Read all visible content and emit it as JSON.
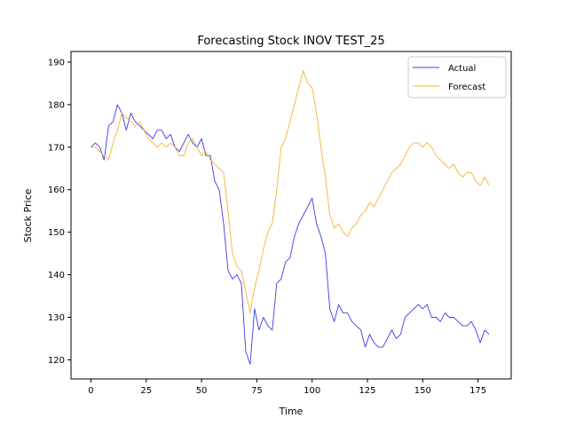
{
  "chart_data": {
    "type": "line",
    "title": "Forecasting Stock INOV TEST_25",
    "xlabel": "Time",
    "ylabel": "Stock Price",
    "xlim": [
      -9,
      190
    ],
    "ylim": [
      115.5,
      192.5
    ],
    "xticks": [
      0,
      25,
      50,
      75,
      100,
      125,
      150,
      175
    ],
    "yticks": [
      120,
      130,
      140,
      150,
      160,
      170,
      180,
      190
    ],
    "grid": false,
    "legend_position": "top-right",
    "series": [
      {
        "name": "Actual",
        "color": "#3b3be6",
        "x": [
          0,
          2,
          4,
          6,
          8,
          10,
          12,
          14,
          16,
          18,
          20,
          22,
          24,
          26,
          28,
          30,
          32,
          34,
          36,
          38,
          40,
          42,
          44,
          46,
          48,
          50,
          52,
          54,
          56,
          58,
          60,
          62,
          64,
          66,
          68,
          70,
          72,
          74,
          76,
          78,
          80,
          82,
          84,
          86,
          88,
          90,
          92,
          94,
          96,
          98,
          100,
          102,
          104,
          106,
          108,
          110,
          112,
          114,
          116,
          118,
          120,
          122,
          124,
          126,
          128,
          130,
          132,
          134,
          136,
          138,
          140,
          142,
          144,
          146,
          148,
          150,
          152,
          154,
          156,
          158,
          160,
          162,
          164,
          166,
          168,
          170,
          172,
          174,
          176,
          178,
          180
        ],
        "values": [
          170,
          171,
          170,
          167,
          175,
          176,
          180,
          178,
          174,
          178,
          176,
          175,
          174,
          173,
          172,
          174,
          174,
          172,
          173,
          170,
          169,
          171,
          173,
          171,
          170,
          172,
          168,
          168,
          162,
          160,
          152,
          141,
          139,
          140,
          138,
          122,
          119,
          132,
          127,
          130,
          128,
          127,
          138,
          139,
          143,
          144,
          149,
          152,
          154,
          156,
          158,
          152,
          149,
          145,
          132,
          129,
          133,
          131,
          131,
          129,
          128,
          127,
          123,
          126,
          124,
          123,
          123,
          125,
          127,
          125,
          126,
          130,
          131,
          132,
          133,
          132,
          133,
          130,
          130,
          129,
          131,
          130,
          130,
          129,
          128,
          128,
          129,
          127,
          124,
          127,
          126
        ]
      },
      {
        "name": "Forecast",
        "color": "#f5b333",
        "x": [
          0,
          2,
          4,
          6,
          8,
          10,
          12,
          14,
          16,
          18,
          20,
          22,
          24,
          26,
          28,
          30,
          32,
          34,
          36,
          38,
          40,
          42,
          44,
          46,
          48,
          50,
          52,
          54,
          56,
          58,
          60,
          62,
          64,
          66,
          68,
          70,
          72,
          74,
          76,
          78,
          80,
          82,
          84,
          86,
          88,
          90,
          92,
          94,
          96,
          98,
          100,
          102,
          104,
          106,
          108,
          110,
          112,
          114,
          116,
          118,
          120,
          122,
          124,
          126,
          128,
          130,
          132,
          134,
          136,
          138,
          140,
          142,
          144,
          146,
          148,
          150,
          152,
          154,
          156,
          158,
          160,
          162,
          164,
          166,
          168,
          170,
          172,
          174,
          176,
          178,
          180
        ],
        "values": [
          170,
          170,
          169,
          168,
          167,
          171,
          174,
          178,
          177,
          176,
          175,
          176,
          174,
          172,
          171,
          170,
          171,
          170,
          171,
          170,
          168,
          168,
          171,
          172,
          170,
          168,
          169,
          167,
          166,
          165,
          164,
          155,
          145,
          142,
          141,
          136,
          131,
          137,
          141,
          146,
          150,
          152,
          160,
          170,
          172,
          176,
          180,
          184,
          188,
          185,
          184,
          178,
          170,
          163,
          154,
          151,
          152,
          150,
          149,
          151,
          152,
          154,
          155,
          157,
          156,
          158,
          160,
          162,
          164,
          165,
          166,
          168,
          170,
          171,
          171,
          170,
          171,
          170,
          168,
          167,
          166,
          165,
          166,
          164,
          163,
          164,
          164,
          162,
          161,
          163,
          161
        ]
      }
    ]
  }
}
